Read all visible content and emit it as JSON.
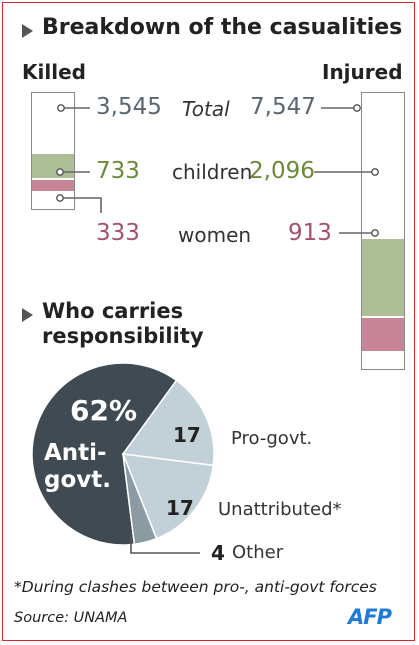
{
  "heading_casualties": "Breakdown of the casualities",
  "killed_label": "Killed",
  "injured_label": "Injured",
  "colors": {
    "total": "#5b6670",
    "children": "#6b8a3a",
    "women": "#a8506e",
    "children_fill": "#aebf98",
    "women_fill": "#c78598",
    "pie_dark": "#3f4a52",
    "pie_light": "#c2d0d8",
    "pie_mid": "#8c9aa3",
    "afp": "#1f7bd8"
  },
  "rows": [
    {
      "label": "Total",
      "killed": "3,545",
      "injured": "7,547"
    },
    {
      "label": "children",
      "killed": "733",
      "injured": "2,096"
    },
    {
      "label": "women",
      "killed": "333",
      "injured": "913"
    }
  ],
  "heading_responsibility": "Who carries responsibility",
  "pie_pct": "62%",
  "pie_anti_line1": "Anti-",
  "pie_anti_line2": "govt.",
  "pie_labels": {
    "pro_num": "17",
    "pro": "Pro-govt.",
    "unatt_num": "17",
    "unatt": "Unattributed*",
    "other_num": "4",
    "other": "Other"
  },
  "footnote": "*During clashes between pro-, anti-govt forces",
  "source": "Source: UNAMA",
  "logo": "AFP",
  "chart_data": [
    {
      "type": "bar",
      "title": "Breakdown of the casualities",
      "categories": [
        "Total",
        "children",
        "women"
      ],
      "series": [
        {
          "name": "Killed",
          "values": [
            3545,
            733,
            333
          ]
        },
        {
          "name": "Injured",
          "values": [
            7547,
            2096,
            913
          ]
        }
      ]
    },
    {
      "type": "pie",
      "title": "Who carries responsibility",
      "categories": [
        "Anti-govt.",
        "Pro-govt.",
        "Unattributed*",
        "Other"
      ],
      "values": [
        62,
        17,
        17,
        4
      ]
    }
  ]
}
